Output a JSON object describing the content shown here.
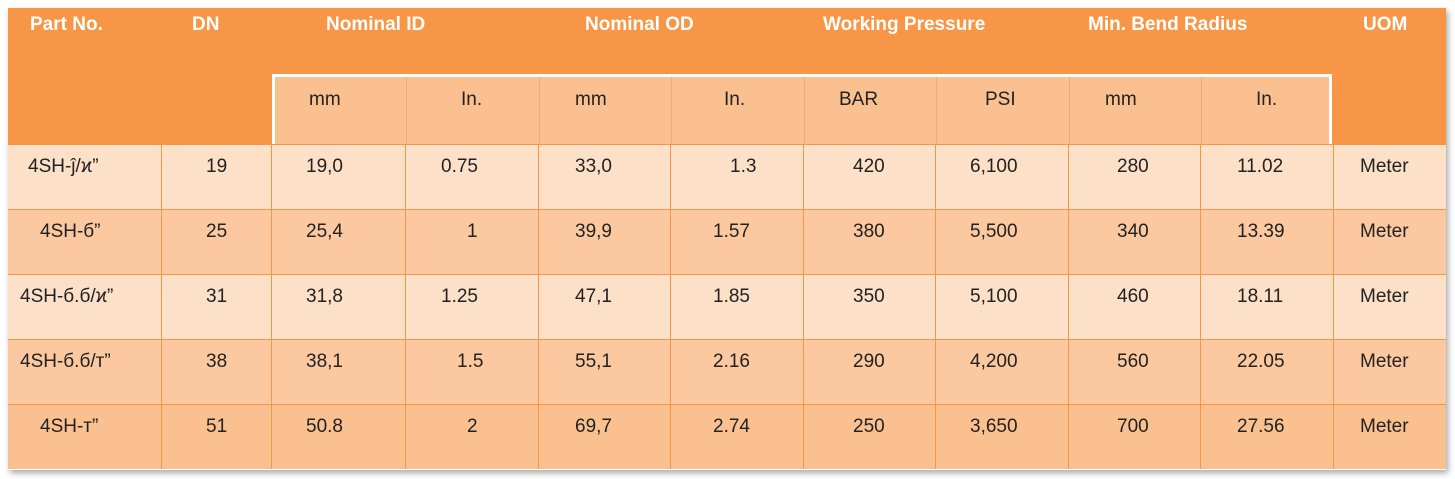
{
  "headers": {
    "part_no": "Part No.",
    "dn": "DN",
    "nominal_id": "Nominal ID",
    "nominal_od": "Nominal OD",
    "working_pressure": "Working Pressure",
    "min_bend_radius": "Min. Bend Radius",
    "uom": "UOM"
  },
  "subheaders": [
    "mm",
    "In.",
    "mm",
    "In.",
    "BAR",
    "PSI",
    "mm",
    "In."
  ],
  "rows": [
    {
      "part": "4SH-ĵ/ϰ”",
      "dn": "19",
      "id_mm": "19,0",
      "id_in": "0.75",
      "od_mm": "33,0",
      "od_in": "1.3",
      "bar": "420",
      "psi": "6,100",
      "br_mm": "280",
      "br_in": "11.02",
      "uom": "Meter"
    },
    {
      "part": "4SH-б”",
      "dn": "25",
      "id_mm": "25,4",
      "id_in": "1",
      "od_mm": "39,9",
      "od_in": "1.57",
      "bar": "380",
      "psi": "5,500",
      "br_mm": "340",
      "br_in": "13.39",
      "uom": "Meter"
    },
    {
      "part": "4SH-б.б/ϰ”",
      "dn": "31",
      "id_mm": "31,8",
      "id_in": "1.25",
      "od_mm": "47,1",
      "od_in": "1.85",
      "bar": "350",
      "psi": "5,100",
      "br_mm": "460",
      "br_in": "18.11",
      "uom": "Meter"
    },
    {
      "part": "4SH-б.б/т”",
      "dn": "38",
      "id_mm": "38,1",
      "id_in": "1.5",
      "od_mm": "55,1",
      "od_in": "2.16",
      "bar": "290",
      "psi": "4,200",
      "br_mm": "560",
      "br_in": "22.05",
      "uom": "Meter"
    },
    {
      "part": "4SH-т”",
      "dn": "51",
      "id_mm": "50.8",
      "id_in": "2",
      "od_mm": "69,7",
      "od_in": "2.74",
      "bar": "250",
      "psi": "3,650",
      "br_mm": "700",
      "br_in": "27.56",
      "uom": "Meter"
    }
  ],
  "colors": {
    "header": "#f79646",
    "subheader": "#fac090",
    "row_light": "#fde0c8",
    "row_mid": "#fbc8a0",
    "row_dark": "#f9b07c"
  }
}
